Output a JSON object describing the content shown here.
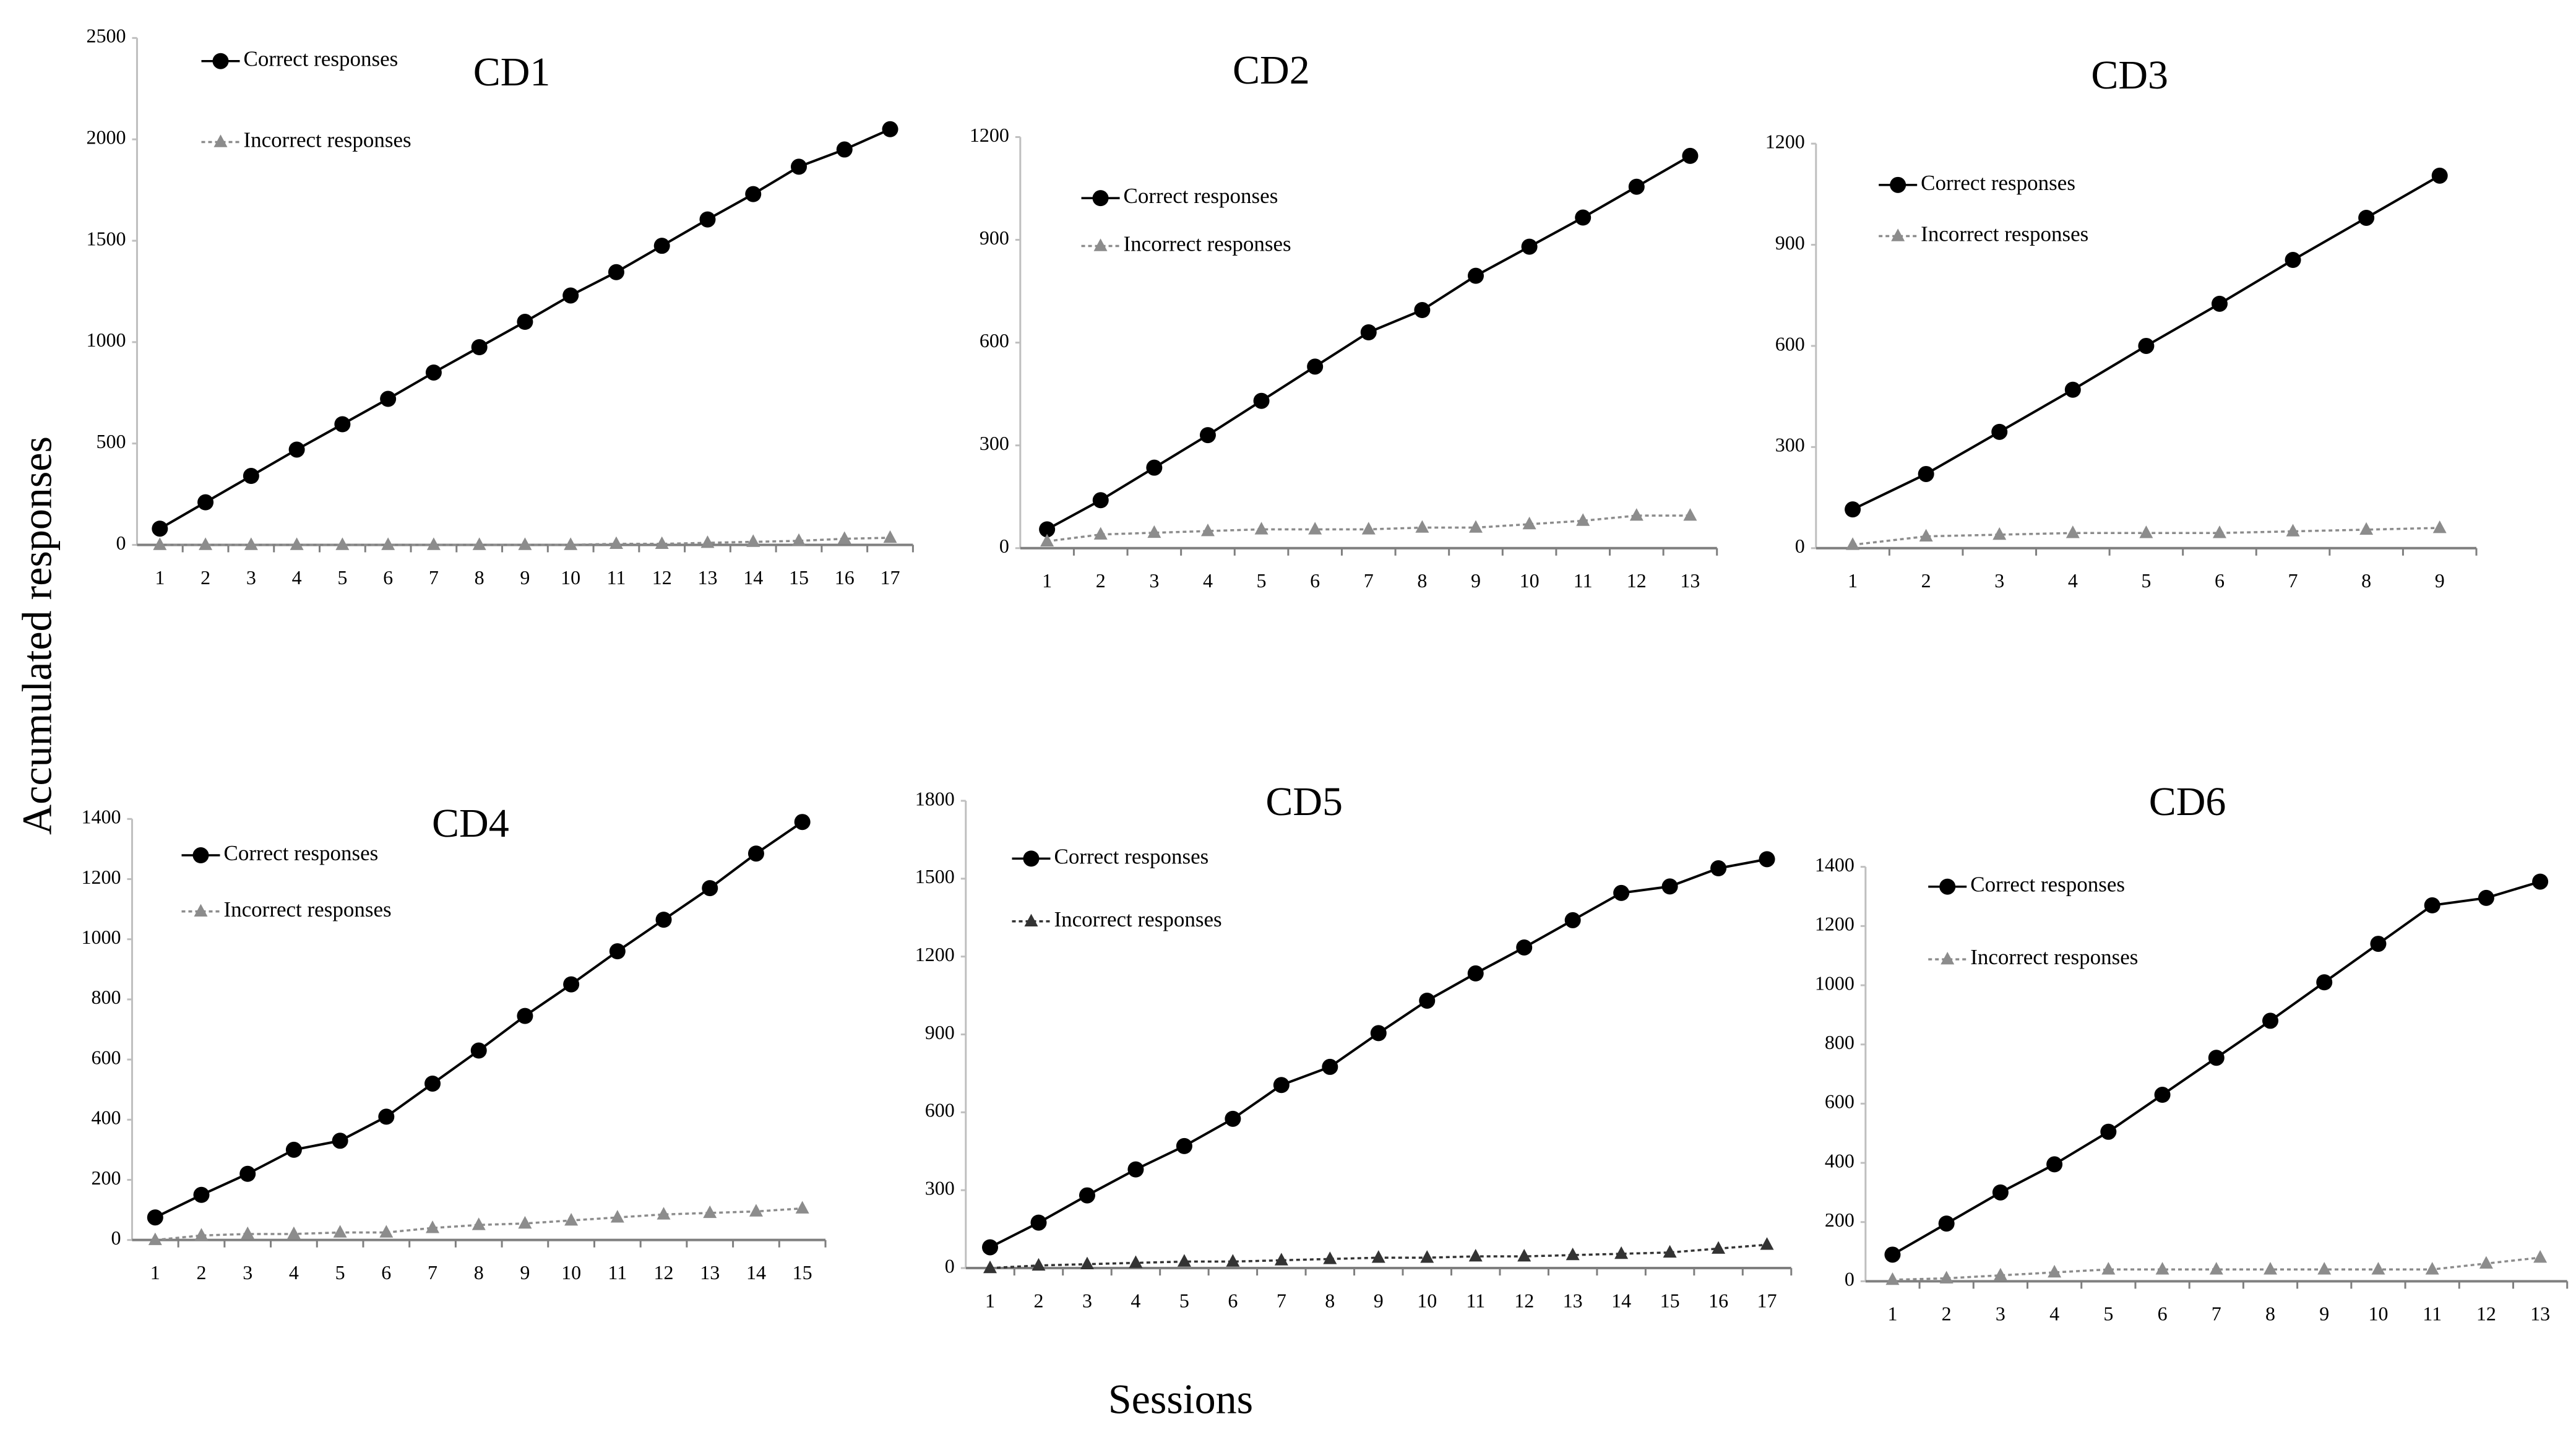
{
  "figure": {
    "ylabel": "Accumulated  responses",
    "xlabel": "Sessions"
  },
  "chart_data": [
    {
      "type": "line",
      "title": "CD1",
      "categories": [
        "1",
        "2",
        "3",
        "4",
        "5",
        "6",
        "7",
        "8",
        "9",
        "10",
        "11",
        "12",
        "13",
        "14",
        "15",
        "16",
        "17"
      ],
      "ylim": [
        0,
        2500
      ],
      "yticks": [
        0,
        500,
        1000,
        1500,
        2000,
        2500
      ],
      "series": [
        {
          "name": "Correct responses",
          "color": "#000000",
          "values": [
            80,
            210,
            340,
            470,
            595,
            720,
            850,
            975,
            1100,
            1230,
            1345,
            1475,
            1605,
            1730,
            1865,
            1950,
            2050
          ]
        },
        {
          "name": "Incorrect responses",
          "color": "#8c8c8c",
          "values": [
            0,
            0,
            0,
            0,
            0,
            0,
            0,
            0,
            0,
            0,
            5,
            5,
            10,
            15,
            20,
            30,
            35
          ]
        }
      ]
    },
    {
      "type": "line",
      "title": "CD2",
      "categories": [
        "1",
        "2",
        "3",
        "4",
        "5",
        "6",
        "7",
        "8",
        "9",
        "10",
        "11",
        "12",
        "13"
      ],
      "ylim": [
        0,
        1200
      ],
      "yticks": [
        0,
        300,
        600,
        900,
        1200
      ],
      "series": [
        {
          "name": "Correct responses",
          "color": "#000000",
          "values": [
            55,
            140,
            235,
            330,
            430,
            530,
            630,
            695,
            795,
            880,
            965,
            1055,
            1145
          ]
        },
        {
          "name": "Incorrect responses",
          "color": "#8c8c8c",
          "values": [
            20,
            40,
            45,
            50,
            55,
            55,
            55,
            60,
            60,
            70,
            80,
            95,
            95
          ]
        }
      ]
    },
    {
      "type": "line",
      "title": "CD3",
      "categories": [
        "1",
        "2",
        "3",
        "4",
        "5",
        "6",
        "7",
        "8",
        "9"
      ],
      "ylim": [
        0,
        1200
      ],
      "yticks": [
        0,
        300,
        600,
        900,
        1200
      ],
      "series": [
        {
          "name": "Correct responses",
          "color": "#000000",
          "values": [
            115,
            220,
            345,
            470,
            600,
            725,
            855,
            980,
            1105
          ]
        },
        {
          "name": "Incorrect responses",
          "color": "#8c8c8c",
          "values": [
            10,
            35,
            40,
            45,
            45,
            45,
            50,
            55,
            60
          ]
        }
      ]
    },
    {
      "type": "line",
      "title": "CD4",
      "categories": [
        "1",
        "2",
        "3",
        "4",
        "5",
        "6",
        "7",
        "8",
        "9",
        "10",
        "11",
        "12",
        "13",
        "14",
        "15"
      ],
      "ylim": [
        0,
        1400
      ],
      "yticks": [
        0,
        200,
        400,
        600,
        800,
        1000,
        1200,
        1400
      ],
      "series": [
        {
          "name": "Correct responses",
          "color": "#000000",
          "values": [
            75,
            150,
            220,
            300,
            330,
            410,
            520,
            630,
            745,
            850,
            960,
            1065,
            1170,
            1285,
            1390
          ]
        },
        {
          "name": "Incorrect responses",
          "color": "#8c8c8c",
          "values": [
            0,
            15,
            20,
            20,
            25,
            25,
            40,
            50,
            55,
            65,
            75,
            85,
            90,
            95,
            105
          ]
        }
      ]
    },
    {
      "type": "line",
      "title": "CD5",
      "categories": [
        "1",
        "2",
        "3",
        "4",
        "5",
        "6",
        "7",
        "8",
        "9",
        "10",
        "11",
        "12",
        "13",
        "14",
        "15",
        "16",
        "17"
      ],
      "ylim": [
        0,
        1800
      ],
      "yticks": [
        0,
        300,
        600,
        900,
        1200,
        1500,
        1800
      ],
      "series": [
        {
          "name": "Correct responses",
          "color": "#000000",
          "values": [
            80,
            175,
            280,
            380,
            470,
            575,
            705,
            775,
            905,
            1030,
            1135,
            1235,
            1340,
            1445,
            1470,
            1540,
            1575
          ]
        },
        {
          "name": "Incorrect responses",
          "color": "#333333",
          "values": [
            0,
            10,
            15,
            20,
            25,
            25,
            30,
            35,
            40,
            40,
            45,
            45,
            50,
            55,
            60,
            75,
            90
          ]
        }
      ]
    },
    {
      "type": "line",
      "title": "CD6",
      "categories": [
        "1",
        "2",
        "3",
        "4",
        "5",
        "6",
        "7",
        "8",
        "9",
        "10",
        "11",
        "12",
        "13"
      ],
      "ylim": [
        0,
        1400
      ],
      "yticks": [
        0,
        200,
        400,
        600,
        800,
        1000,
        1200,
        1400
      ],
      "series": [
        {
          "name": "Correct responses",
          "color": "#000000",
          "values": [
            90,
            195,
            300,
            395,
            505,
            630,
            755,
            880,
            1010,
            1140,
            1270,
            1295,
            1350
          ]
        },
        {
          "name": "Incorrect responses",
          "color": "#8c8c8c",
          "values": [
            5,
            10,
            20,
            30,
            40,
            40,
            40,
            40,
            40,
            40,
            40,
            60,
            80
          ]
        }
      ]
    }
  ]
}
